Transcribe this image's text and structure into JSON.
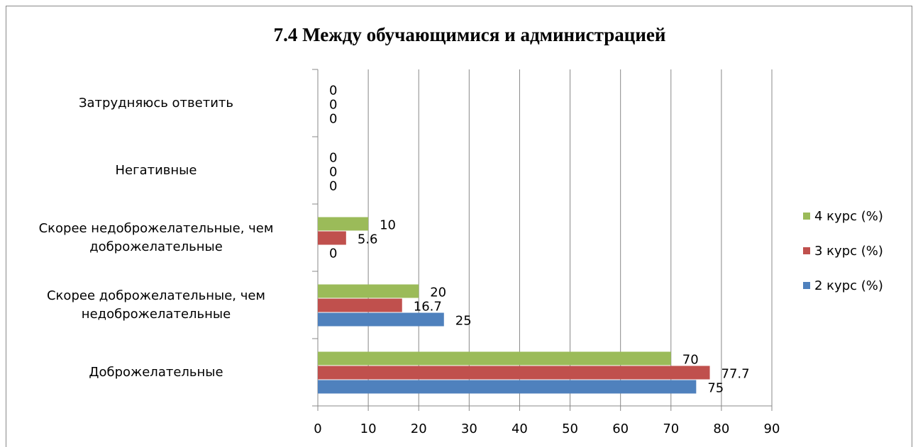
{
  "chart_data": {
    "type": "bar",
    "orientation": "horizontal",
    "title": "7.4 Между обучающимися и администрацией",
    "categories": [
      "Доброжелательные",
      "Скорее доброжелательные, чем недоброжелательные",
      "Скорее недоброжелательные, чем доброжелательные",
      "Негативные",
      "Затрудняюсь ответить"
    ],
    "series": [
      {
        "name": "2 курс (%)",
        "color": "#4f81bd",
        "values": [
          75,
          25,
          0,
          0,
          0
        ]
      },
      {
        "name": "3 курс (%)",
        "color": "#c0504d",
        "values": [
          77.7,
          16.7,
          5.6,
          0,
          0
        ]
      },
      {
        "name": "4 курс (%)",
        "color": "#9bbb59",
        "values": [
          70,
          20,
          10,
          0,
          0
        ]
      }
    ],
    "xlim": [
      0,
      90
    ],
    "xticks": [
      0,
      10,
      20,
      30,
      40,
      50,
      60,
      70,
      80,
      90
    ],
    "grid": true,
    "legend": "right"
  }
}
